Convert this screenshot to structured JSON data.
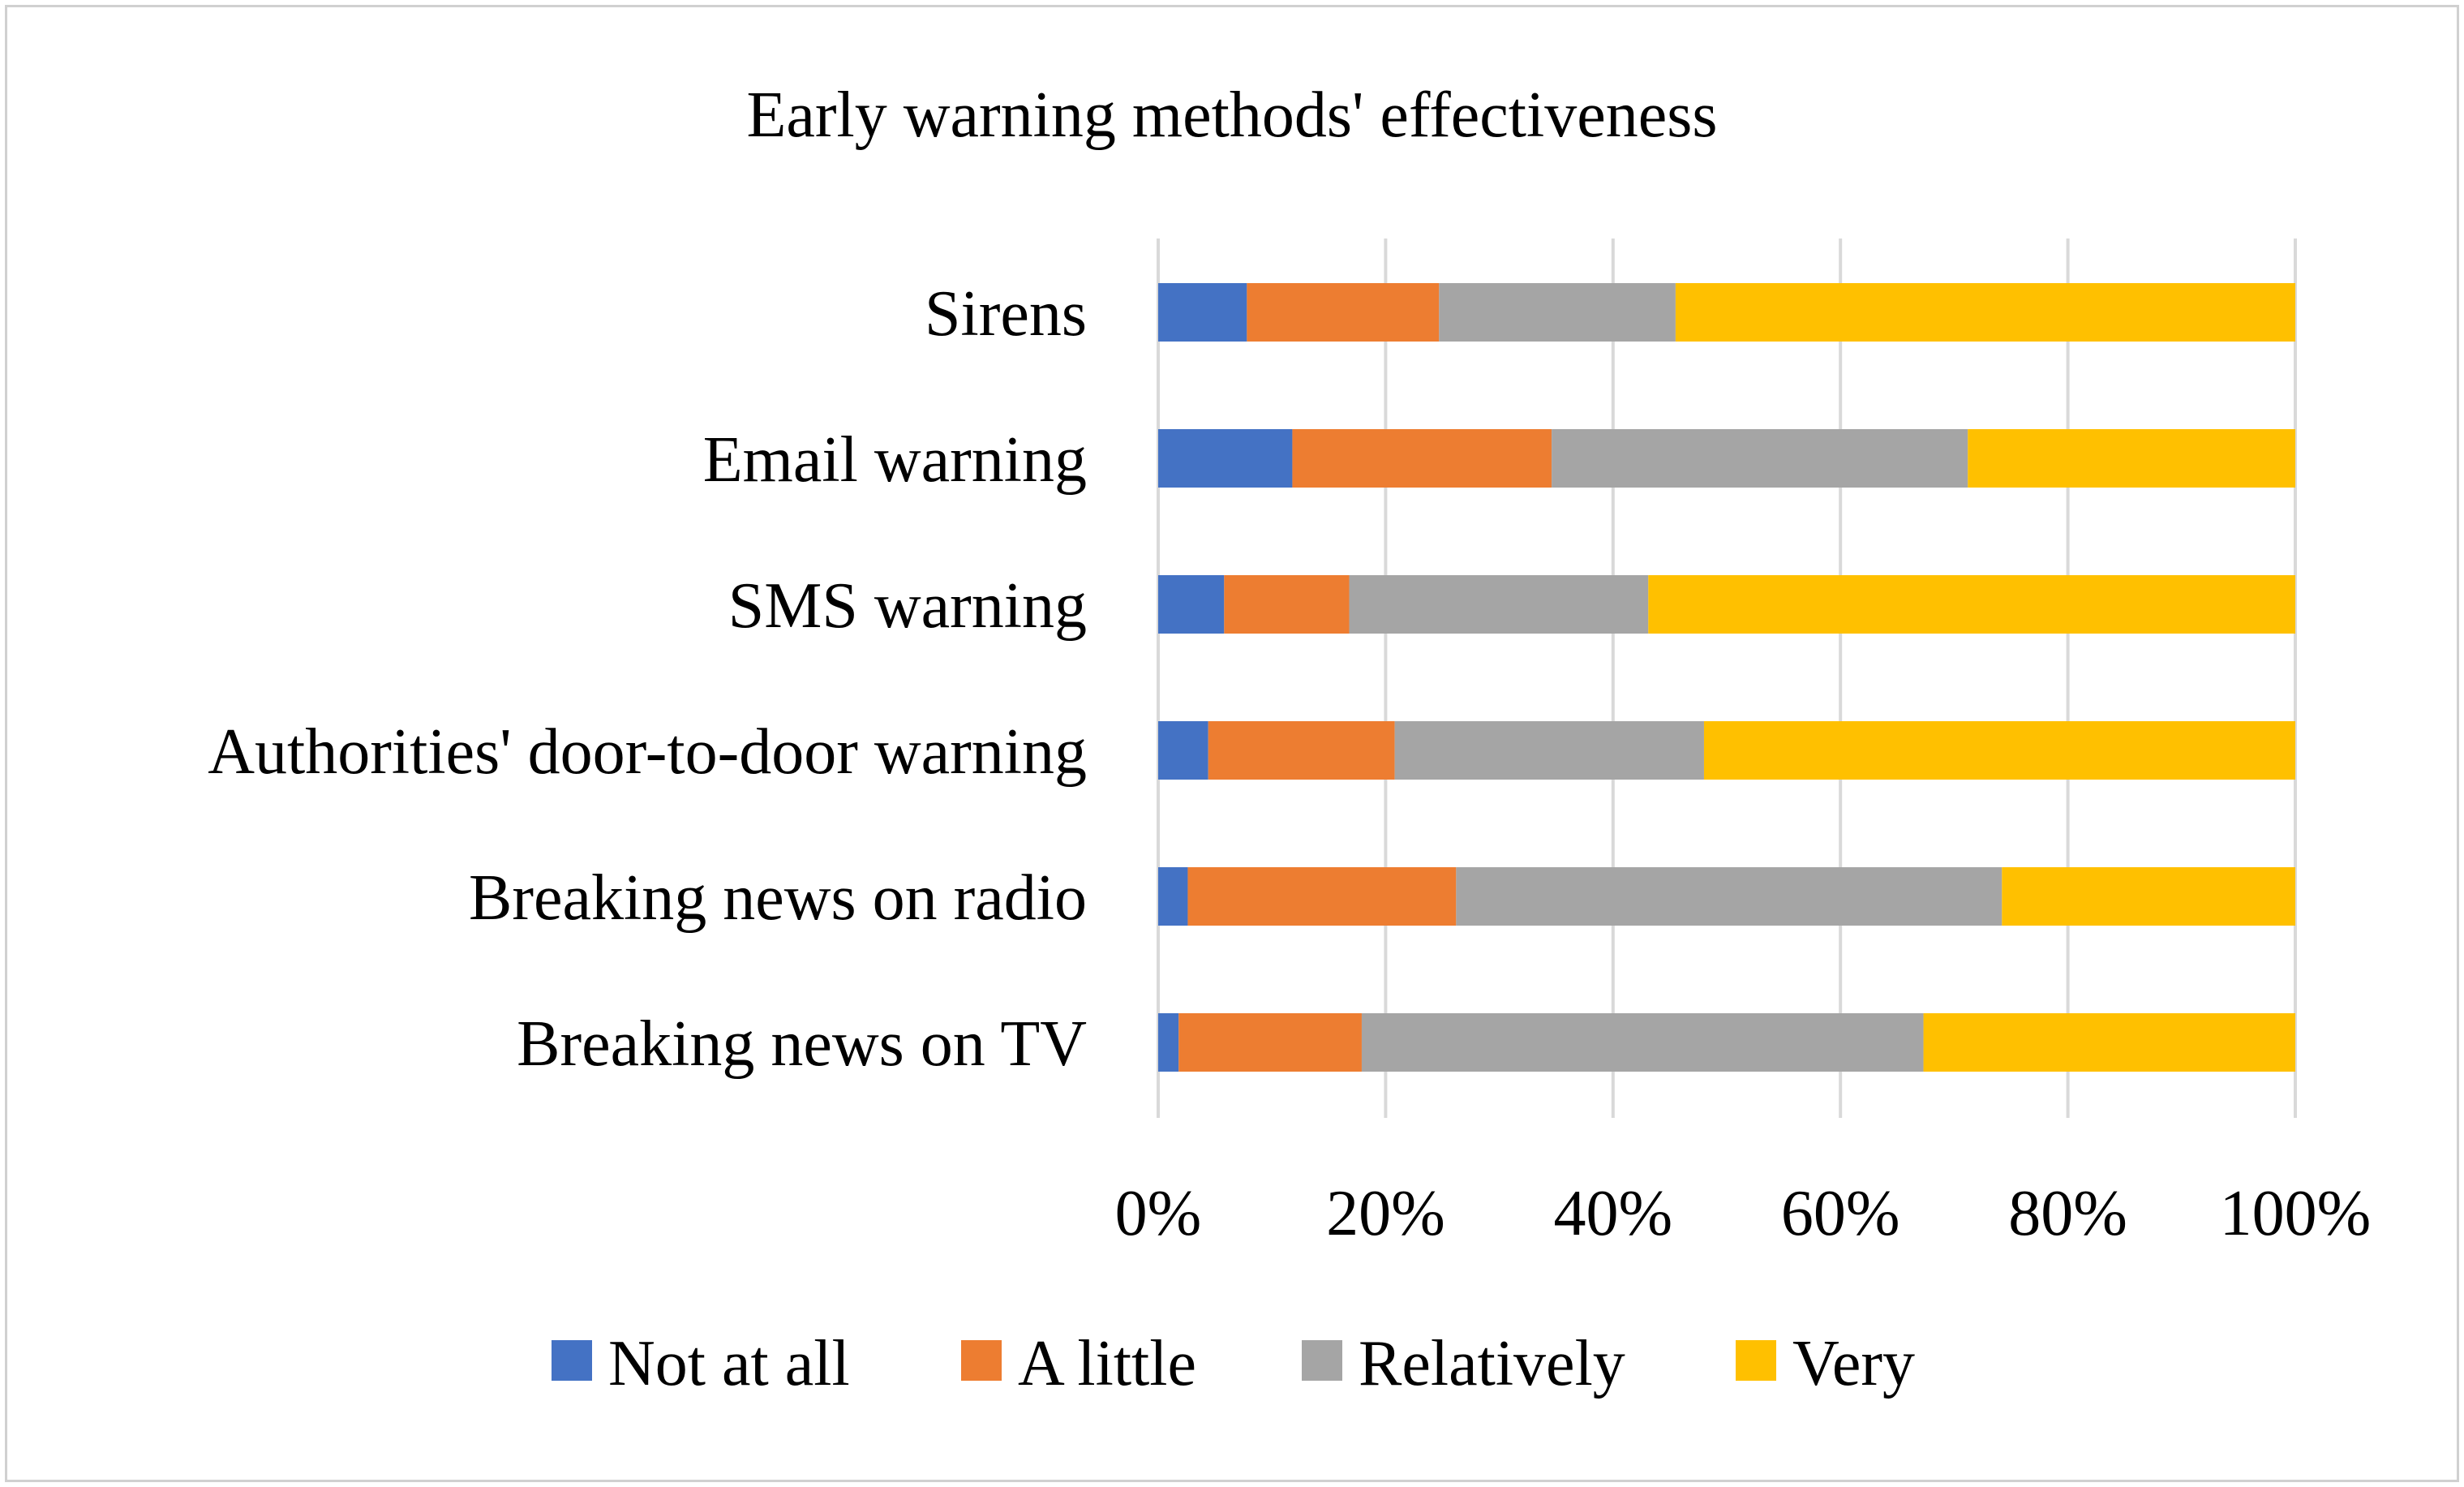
{
  "chart_data": {
    "type": "bar",
    "orientation": "horizontal",
    "stacked": "percent",
    "title": "Early warning methods' effectiveness",
    "categories": [
      "Sirens",
      "Email warning",
      "SMS warning",
      "Authorities' door-to-door warning",
      "Breaking news on radio",
      "Breaking news on TV"
    ],
    "series": [
      {
        "name": "Not at all",
        "color": "#4472C4",
        "values": [
          7.8,
          11.8,
          5.8,
          4.4,
          2.6,
          1.8
        ]
      },
      {
        "name": "A little",
        "color": "#ED7D31",
        "values": [
          16.9,
          22.8,
          11.0,
          16.4,
          23.6,
          16.1
        ]
      },
      {
        "name": "Relatively",
        "color": "#A5A5A5",
        "values": [
          20.8,
          36.6,
          26.3,
          27.2,
          48.0,
          49.4
        ]
      },
      {
        "name": "Very",
        "color": "#FFC000",
        "values": [
          54.5,
          28.8,
          56.9,
          52.0,
          25.8,
          32.7
        ]
      }
    ],
    "xticks": [
      "0%",
      "20%",
      "40%",
      "60%",
      "80%",
      "100%"
    ],
    "xlim": [
      0,
      100
    ],
    "grid": true,
    "legend_position": "bottom",
    "xlabel": "",
    "ylabel": ""
  }
}
